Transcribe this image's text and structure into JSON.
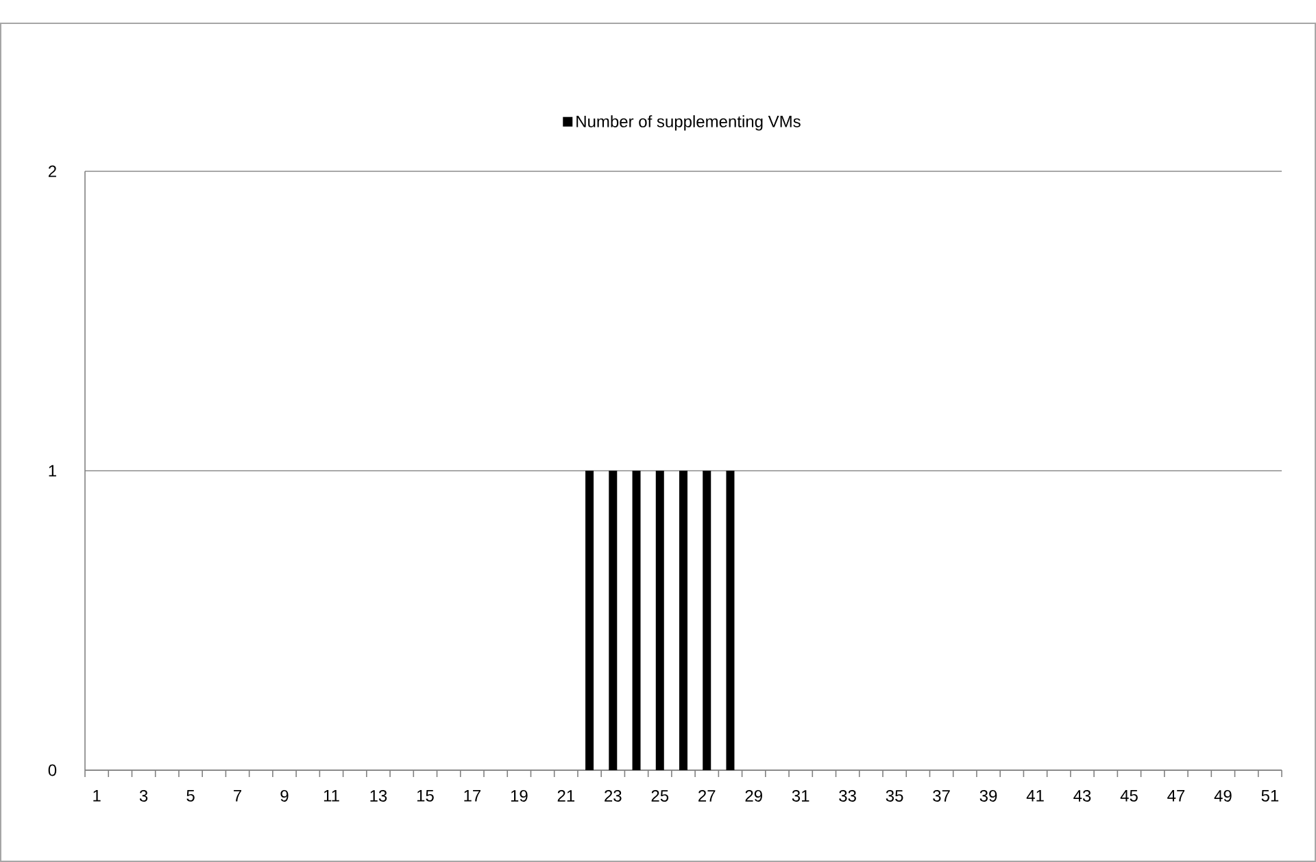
{
  "chart_data": {
    "type": "bar",
    "categories": [
      "1",
      null,
      "3",
      null,
      "5",
      null,
      "7",
      null,
      "9",
      null,
      "11",
      null,
      "13",
      null,
      "15",
      null,
      "17",
      null,
      "19",
      null,
      "21",
      null,
      "23",
      null,
      "25",
      null,
      "27",
      null,
      "29",
      null,
      "31",
      null,
      "33",
      null,
      "35",
      null,
      "37",
      null,
      "39",
      null,
      "41",
      null,
      "43",
      null,
      "45",
      null,
      "47",
      null,
      "49",
      null,
      "51"
    ],
    "series": [
      {
        "name": "Number of supplementing VMs",
        "color": "#000000",
        "values": [
          0,
          0,
          0,
          0,
          0,
          0,
          0,
          0,
          0,
          0,
          0,
          0,
          0,
          0,
          0,
          0,
          0,
          0,
          0,
          0,
          0,
          1,
          1,
          1,
          1,
          1,
          1,
          1,
          0,
          0,
          0,
          0,
          0,
          0,
          0,
          0,
          0,
          0,
          0,
          0,
          0,
          0,
          0,
          0,
          0,
          0,
          0,
          0,
          0,
          0,
          0
        ]
      }
    ],
    "ylim": [
      0,
      2
    ],
    "yticks": [
      0,
      1,
      2
    ],
    "grid": "y",
    "legend": "top"
  }
}
